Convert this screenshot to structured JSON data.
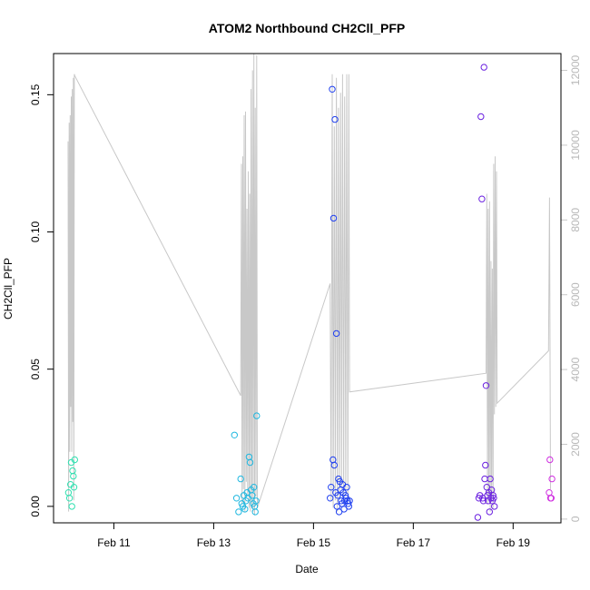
{
  "chart_data": {
    "type": "scatter",
    "title": "ATOM2 Northbound CH2Cll_PFP",
    "xlabel": "Date",
    "ylabel": "CH2Cll_PFP",
    "y2label": "",
    "xlim": [
      "2016-02-09T19:00",
      "2016-02-19T23:00"
    ],
    "ylim": [
      -0.006,
      0.165
    ],
    "y2lim": [
      -100,
      12450
    ],
    "xticks": [
      {
        "label": "Feb 11",
        "value": "2016-02-11T00:00"
      },
      {
        "label": "Feb 13",
        "value": "2016-02-13T00:00"
      },
      {
        "label": "Feb 15",
        "value": "2016-02-15T00:00"
      },
      {
        "label": "Feb 17",
        "value": "2016-02-17T00:00"
      },
      {
        "label": "Feb 19",
        "value": "2016-02-19T00:00"
      }
    ],
    "yticks": [
      {
        "label": "0.00",
        "value": 0.0
      },
      {
        "label": "0.05",
        "value": 0.05
      },
      {
        "label": "0.10",
        "value": 0.1
      },
      {
        "label": "0.15",
        "value": 0.15
      }
    ],
    "y2ticks": [
      {
        "label": "0",
        "value": 0
      },
      {
        "label": "2000",
        "value": 2000
      },
      {
        "label": "4000",
        "value": 4000
      },
      {
        "label": "6000",
        "value": 6000
      },
      {
        "label": "8000",
        "value": 8000
      },
      {
        "label": "10000",
        "value": 10000
      },
      {
        "label": "12000",
        "value": 12000
      }
    ],
    "grid": false,
    "colors": {
      "trace": "#c8c8c8",
      "groups": [
        "#30e0b0",
        "#20b8e0",
        "#2040f0",
        "#6a20e0",
        "#d030e0"
      ]
    },
    "series": [
      {
        "group": 0,
        "x": [
          "2016-02-10T02:10",
          "2016-02-10T02:40",
          "2016-02-10T03:10",
          "2016-02-10T03:30",
          "2016-02-10T03:50",
          "2016-02-10T04:10",
          "2016-02-10T04:30",
          "2016-02-10T04:50",
          "2016-02-10T05:10"
        ],
        "y": [
          0.005,
          0.003,
          0.008,
          0.016,
          0.0,
          0.013,
          0.011,
          0.007,
          0.017
        ]
      },
      {
        "group": 1,
        "x": [
          "2016-02-13T10:00",
          "2016-02-13T11:00",
          "2016-02-13T12:00",
          "2016-02-13T13:00",
          "2016-02-13T13:30",
          "2016-02-13T14:00",
          "2016-02-13T14:30",
          "2016-02-13T15:00",
          "2016-02-13T15:30",
          "2016-02-13T16:00",
          "2016-02-13T16:30",
          "2016-02-13T17:00",
          "2016-02-13T17:30",
          "2016-02-13T18:00",
          "2016-02-13T18:30",
          "2016-02-13T19:00",
          "2016-02-13T19:20",
          "2016-02-13T19:40",
          "2016-02-13T20:00",
          "2016-02-13T20:20",
          "2016-02-13T20:40"
        ],
        "y": [
          0.026,
          0.003,
          -0.002,
          0.01,
          0.001,
          0.0,
          0.004,
          -0.001,
          0.002,
          0.005,
          0.003,
          0.018,
          0.016,
          0.006,
          0.004,
          0.001,
          0.007,
          0.0,
          -0.002,
          0.002,
          0.033
        ]
      },
      {
        "group": 2,
        "x": [
          "2016-02-15T08:00",
          "2016-02-15T08:30",
          "2016-02-15T09:00",
          "2016-02-15T09:20",
          "2016-02-15T09:40",
          "2016-02-15T10:00",
          "2016-02-15T10:20",
          "2016-02-15T10:40",
          "2016-02-15T11:00",
          "2016-02-15T11:20",
          "2016-02-15T11:40",
          "2016-02-15T12:00",
          "2016-02-15T12:20",
          "2016-02-15T12:40",
          "2016-02-15T13:00",
          "2016-02-15T13:20",
          "2016-02-15T13:40",
          "2016-02-15T14:00",
          "2016-02-15T14:20",
          "2016-02-15T14:40",
          "2016-02-15T15:00",
          "2016-02-15T15:20",
          "2016-02-15T15:40",
          "2016-02-15T16:00",
          "2016-02-15T16:20",
          "2016-02-15T16:40",
          "2016-02-15T17:00",
          "2016-02-15T17:20"
        ],
        "y": [
          0.003,
          0.007,
          0.152,
          0.017,
          0.105,
          0.015,
          0.141,
          0.005,
          0.063,
          0.0,
          0.004,
          0.01,
          -0.002,
          0.009,
          0.006,
          0.002,
          0.001,
          0.008,
          0.005,
          -0.001,
          0.002,
          0.004,
          0.003,
          0.007,
          0.002,
          0.001,
          0.0,
          0.002
        ]
      },
      {
        "group": 3,
        "x": [
          "2016-02-18T07:00",
          "2016-02-18T07:30",
          "2016-02-18T08:00",
          "2016-02-18T08:30",
          "2016-02-18T09:00",
          "2016-02-18T09:20",
          "2016-02-18T09:40",
          "2016-02-18T10:00",
          "2016-02-18T10:20",
          "2016-02-18T10:40",
          "2016-02-18T11:00",
          "2016-02-18T11:20",
          "2016-02-18T11:40",
          "2016-02-18T12:00",
          "2016-02-18T12:20",
          "2016-02-18T12:40",
          "2016-02-18T13:00",
          "2016-02-18T13:20",
          "2016-02-18T13:40",
          "2016-02-18T14:00",
          "2016-02-18T14:20",
          "2016-02-18T14:40",
          "2016-02-18T15:00"
        ],
        "y": [
          -0.004,
          0.003,
          0.004,
          0.142,
          0.112,
          0.003,
          0.002,
          0.16,
          0.01,
          0.015,
          0.044,
          0.007,
          0.004,
          0.002,
          0.005,
          -0.002,
          0.01,
          0.003,
          0.006,
          0.002,
          0.004,
          0.003,
          0.0
        ]
      },
      {
        "group": 4,
        "x": [
          "2016-02-19T17:20",
          "2016-02-19T17:40",
          "2016-02-19T18:00",
          "2016-02-19T18:20",
          "2016-02-19T18:40"
        ],
        "y": [
          0.005,
          0.017,
          0.003,
          0.003,
          0.01
        ]
      }
    ],
    "trace_line": {
      "axis": "right",
      "x": [
        "2016-02-10T02:00",
        "2016-02-10T02:15",
        "2016-02-10T02:30",
        "2016-02-10T02:45",
        "2016-02-10T03:00",
        "2016-02-10T03:15",
        "2016-02-10T03:30",
        "2016-02-10T03:45",
        "2016-02-10T04:00",
        "2016-02-10T04:15",
        "2016-02-10T04:30",
        "2016-02-10T04:45",
        "2016-02-10T05:00",
        "2016-02-10T05:15",
        "2016-02-13T13:00",
        "2016-02-13T13:20",
        "2016-02-13T13:40",
        "2016-02-13T14:00",
        "2016-02-13T14:20",
        "2016-02-13T14:40",
        "2016-02-13T15:00",
        "2016-02-13T15:20",
        "2016-02-13T15:40",
        "2016-02-13T16:00",
        "2016-02-13T16:20",
        "2016-02-13T16:40",
        "2016-02-13T17:00",
        "2016-02-13T17:20",
        "2016-02-13T17:40",
        "2016-02-13T18:00",
        "2016-02-13T18:20",
        "2016-02-13T18:40",
        "2016-02-13T19:00",
        "2016-02-13T19:20",
        "2016-02-13T19:40",
        "2016-02-13T20:00",
        "2016-02-13T20:20",
        "2016-02-13T20:40",
        "2016-02-13T21:00",
        "2016-02-15T08:00",
        "2016-02-15T08:30",
        "2016-02-15T09:00",
        "2016-02-15T09:30",
        "2016-02-15T10:00",
        "2016-02-15T10:30",
        "2016-02-15T11:00",
        "2016-02-15T11:30",
        "2016-02-15T12:00",
        "2016-02-15T12:30",
        "2016-02-15T13:00",
        "2016-02-15T13:30",
        "2016-02-15T14:00",
        "2016-02-15T14:30",
        "2016-02-15T15:00",
        "2016-02-15T15:30",
        "2016-02-15T16:00",
        "2016-02-15T16:30",
        "2016-02-15T17:00",
        "2016-02-15T17:20",
        "2016-02-18T11:00",
        "2016-02-18T11:20",
        "2016-02-18T11:40",
        "2016-02-18T12:00",
        "2016-02-18T12:20",
        "2016-02-18T12:40",
        "2016-02-18T13:00",
        "2016-02-18T13:20",
        "2016-02-18T13:40",
        "2016-02-18T14:00",
        "2016-02-18T14:20",
        "2016-02-18T14:40",
        "2016-02-18T15:00",
        "2016-02-18T15:20",
        "2016-02-18T15:40",
        "2016-02-18T16:00",
        "2016-02-18T16:20",
        "2016-02-19T17:00",
        "2016-02-19T17:30",
        "2016-02-19T18:00"
      ],
      "y": [
        10100,
        200,
        10600,
        1800,
        10800,
        3000,
        11300,
        1800,
        11500,
        2600,
        11800,
        500,
        11900,
        11850,
        3300,
        9500,
        400,
        9700,
        800,
        10800,
        200,
        10900,
        1000,
        8300,
        600,
        9300,
        300,
        8700,
        200,
        11500,
        300,
        12000,
        200,
        12450,
        100,
        11000,
        600,
        12400,
        300,
        6300,
        500,
        11900,
        300,
        10500,
        500,
        11800,
        200,
        11000,
        600,
        11400,
        800,
        11900,
        400,
        11300,
        800,
        11900,
        500,
        11900,
        3400,
        3900,
        8700,
        400,
        8300,
        600,
        8500,
        200,
        6900,
        500,
        6700,
        300,
        9500,
        2800,
        9700,
        3000,
        9300,
        3100,
        4500,
        8600,
        800
      ]
    }
  }
}
